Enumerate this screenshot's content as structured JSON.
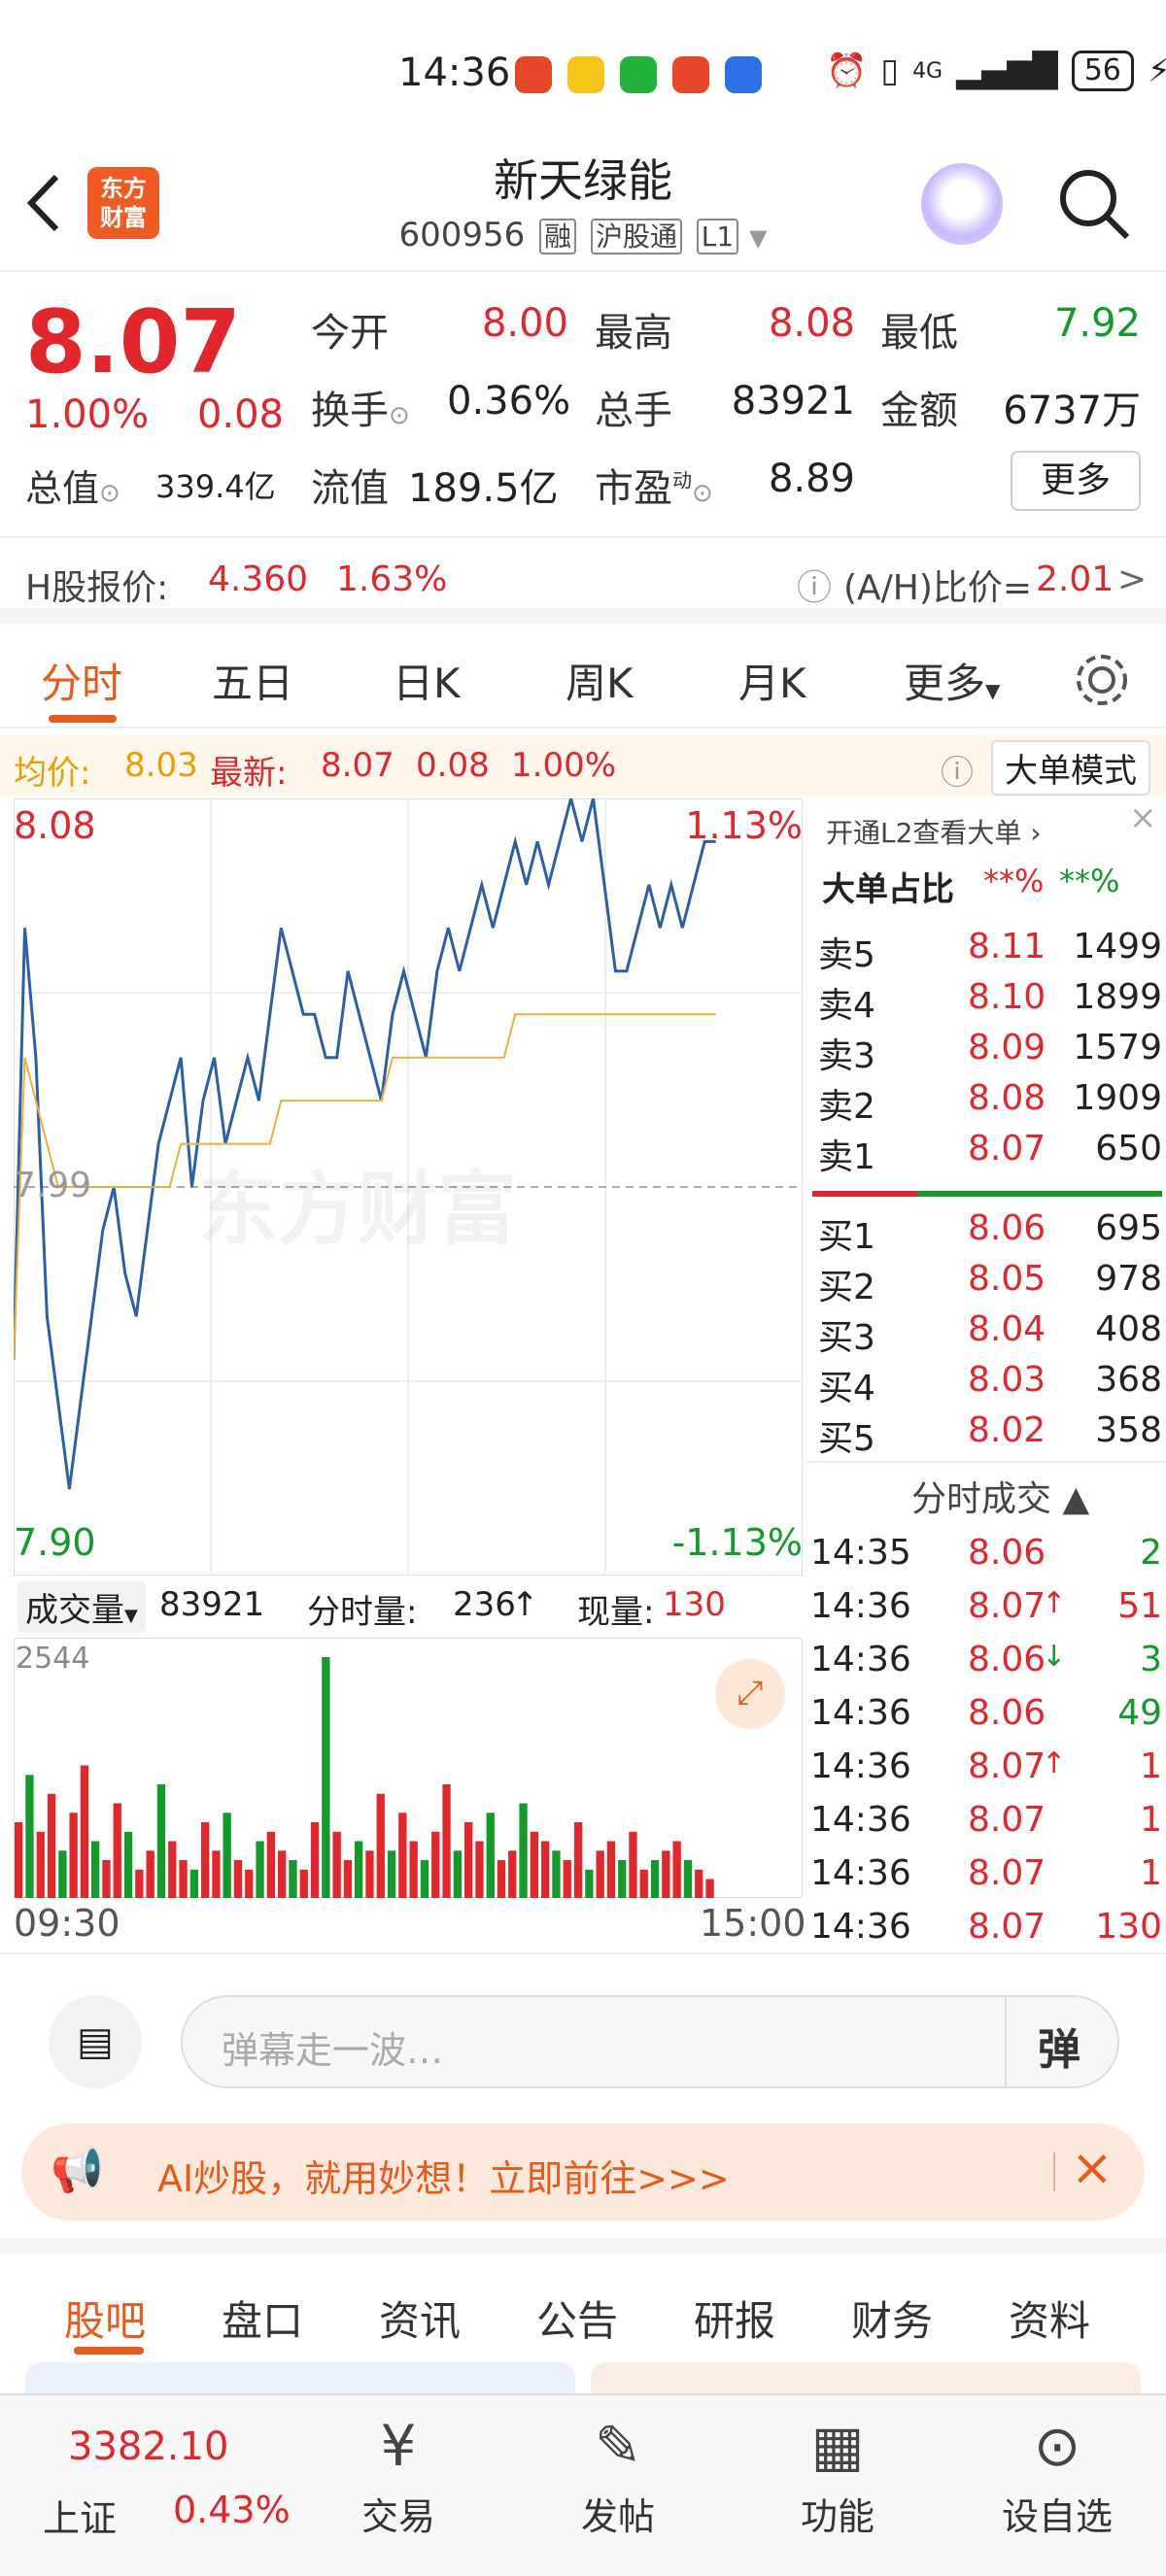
{
  "status": {
    "time": "14:36",
    "battery": "56",
    "signal": "4G"
  },
  "header": {
    "logo_line1": "东方",
    "logo_line2": "财富",
    "title": "新天绿能",
    "code": "600956",
    "tags": [
      "融",
      "沪股通",
      "L1"
    ]
  },
  "quote": {
    "price": "8.07",
    "change_pct": "1.00%",
    "change": "0.08",
    "open_label": "今开",
    "open": "8.00",
    "high_label": "最高",
    "high": "8.08",
    "low_label": "最低",
    "low": "7.92",
    "turnover_label": "换手",
    "turnover": "0.36%",
    "volume_label": "总手",
    "volume": "83921",
    "amount_label": "金额",
    "amount": "6737万",
    "mcap_label": "总值",
    "mcap": "339.4亿",
    "float_label": "流值",
    "float": "189.5亿",
    "pe_label": "市盈",
    "pe_sup": "动",
    "pe": "8.89",
    "more": "更多"
  },
  "hshare": {
    "label": "H股报价:",
    "price": "4.360",
    "pct": "1.63%",
    "ratio_label": "(A/H)比价=",
    "ratio": "2.01",
    "arrow": ">"
  },
  "ktabs": [
    "分时",
    "五日",
    "日K",
    "周K",
    "月K",
    "更多"
  ],
  "chart_info": {
    "avg_label": "均价:",
    "avg": "8.03",
    "last_label": "最新:",
    "last": "8.07",
    "chg": "0.08",
    "pct": "1.00%",
    "big_mode": "大单模式"
  },
  "chart_axis": {
    "top_price": "8.08",
    "top_pct": "1.13%",
    "mid_price": "7.99",
    "bottom_price": "7.90",
    "bottom_pct": "-1.13%",
    "watermark": "东方财富"
  },
  "volume_bar": {
    "label": "成交量",
    "total": "83921",
    "minute_label": "分时量:",
    "minute": "236",
    "now_label": "现量:",
    "now": "130",
    "max": "2544",
    "start": "09:30",
    "end": "15:00"
  },
  "book": {
    "l2": "开通L2查看大单",
    "ratio_label": "大单占比",
    "ratio_red": "**%",
    "ratio_green": "**%",
    "asks": [
      {
        "label": "卖5",
        "price": "8.11",
        "vol": "1499"
      },
      {
        "label": "卖4",
        "price": "8.10",
        "vol": "1899"
      },
      {
        "label": "卖3",
        "price": "8.09",
        "vol": "1579"
      },
      {
        "label": "卖2",
        "price": "8.08",
        "vol": "1909"
      },
      {
        "label": "卖1",
        "price": "8.07",
        "vol": "650"
      }
    ],
    "bids": [
      {
        "label": "买1",
        "price": "8.06",
        "vol": "695"
      },
      {
        "label": "买2",
        "price": "8.05",
        "vol": "978"
      },
      {
        "label": "买3",
        "price": "8.04",
        "vol": "408"
      },
      {
        "label": "买4",
        "price": "8.03",
        "vol": "368"
      },
      {
        "label": "买5",
        "price": "8.02",
        "vol": "358"
      }
    ],
    "trades_label": "分时成交",
    "trades": [
      {
        "time": "14:35",
        "price": "8.06",
        "arrow": "",
        "vol": "2",
        "color": "green"
      },
      {
        "time": "14:36",
        "price": "8.07",
        "arrow": "↑",
        "vol": "51",
        "color": "red"
      },
      {
        "time": "14:36",
        "price": "8.06",
        "arrow": "↓",
        "vol": "3",
        "color": "green"
      },
      {
        "time": "14:36",
        "price": "8.06",
        "arrow": "",
        "vol": "49",
        "color": "green"
      },
      {
        "time": "14:36",
        "price": "8.07",
        "arrow": "↑",
        "vol": "1",
        "color": "red"
      },
      {
        "time": "14:36",
        "price": "8.07",
        "arrow": "",
        "vol": "1",
        "color": "red"
      },
      {
        "time": "14:36",
        "price": "8.07",
        "arrow": "",
        "vol": "1",
        "color": "red"
      },
      {
        "time": "14:36",
        "price": "8.07",
        "arrow": "",
        "vol": "130",
        "color": "red"
      }
    ]
  },
  "danmu": {
    "placeholder": "弹幕走一波…",
    "btn": "弹"
  },
  "promo": {
    "text": "AI炒股，就用妙想！立即前往>>>"
  },
  "btabs": [
    "股吧",
    "盘口",
    "资讯",
    "公告",
    "研报",
    "财务",
    "资料"
  ],
  "nav": {
    "index_value": "3382.10",
    "index_name": "上证",
    "index_pct": "0.43%",
    "items": [
      "交易",
      "发帖",
      "功能",
      "设自选"
    ]
  },
  "chart_data": {
    "type": "line",
    "ylim": [
      7.9,
      8.08
    ],
    "series": [
      {
        "values": [
          7.95,
          8.05,
          8.02,
          7.96,
          7.94,
          7.92,
          7.94,
          7.96,
          7.98,
          7.99,
          7.97,
          7.96,
          7.98,
          8.0,
          8.01,
          8.02,
          7.99,
          8.01,
          8.02,
          8.0,
          8.01,
          8.02,
          8.01,
          8.03,
          8.05,
          8.04,
          8.03,
          8.03,
          8.02,
          8.02,
          8.04,
          8.03,
          8.02,
          8.01,
          8.03,
          8.04,
          8.03,
          8.02,
          8.04,
          8.05,
          8.04,
          8.05,
          8.06,
          8.05,
          8.06,
          8.07,
          8.06,
          8.07,
          8.06,
          8.07,
          8.08,
          8.07,
          8.08,
          8.06,
          8.04,
          8.04,
          8.05,
          8.06,
          8.05,
          8.06,
          8.05,
          8.06,
          8.07,
          8.07
        ]
      },
      {
        "values": [
          7.95,
          8.02,
          8.01,
          8.0,
          7.99,
          7.99,
          7.99,
          7.99,
          7.99,
          7.99,
          7.99,
          7.99,
          7.99,
          7.99,
          7.99,
          8.0,
          8.0,
          8.0,
          8.0,
          8.0,
          8.0,
          8.0,
          8.0,
          8.0,
          8.01,
          8.01,
          8.01,
          8.01,
          8.01,
          8.01,
          8.01,
          8.01,
          8.01,
          8.01,
          8.02,
          8.02,
          8.02,
          8.02,
          8.02,
          8.02,
          8.02,
          8.02,
          8.02,
          8.02,
          8.02,
          8.03,
          8.03,
          8.03,
          8.03,
          8.03,
          8.03,
          8.03,
          8.03,
          8.03,
          8.03,
          8.03,
          8.03,
          8.03,
          8.03,
          8.03,
          8.03,
          8.03,
          8.03,
          8.03
        ]
      }
    ],
    "volume": [
      800,
      1300,
      700,
      1100,
      500,
      900,
      1400,
      600,
      400,
      1000,
      700,
      300,
      500,
      1200,
      600,
      400,
      300,
      800,
      500,
      900,
      400,
      300,
      600,
      700,
      500,
      400,
      300,
      800,
      2544,
      700,
      400,
      600,
      500,
      1100,
      500,
      900,
      600,
      400,
      700,
      1200,
      500,
      800,
      600,
      900,
      400,
      500,
      1000,
      700,
      600,
      500,
      400,
      800,
      300,
      500,
      600,
      400,
      700,
      300,
      400,
      500,
      600,
      400,
      300,
      200
    ]
  }
}
